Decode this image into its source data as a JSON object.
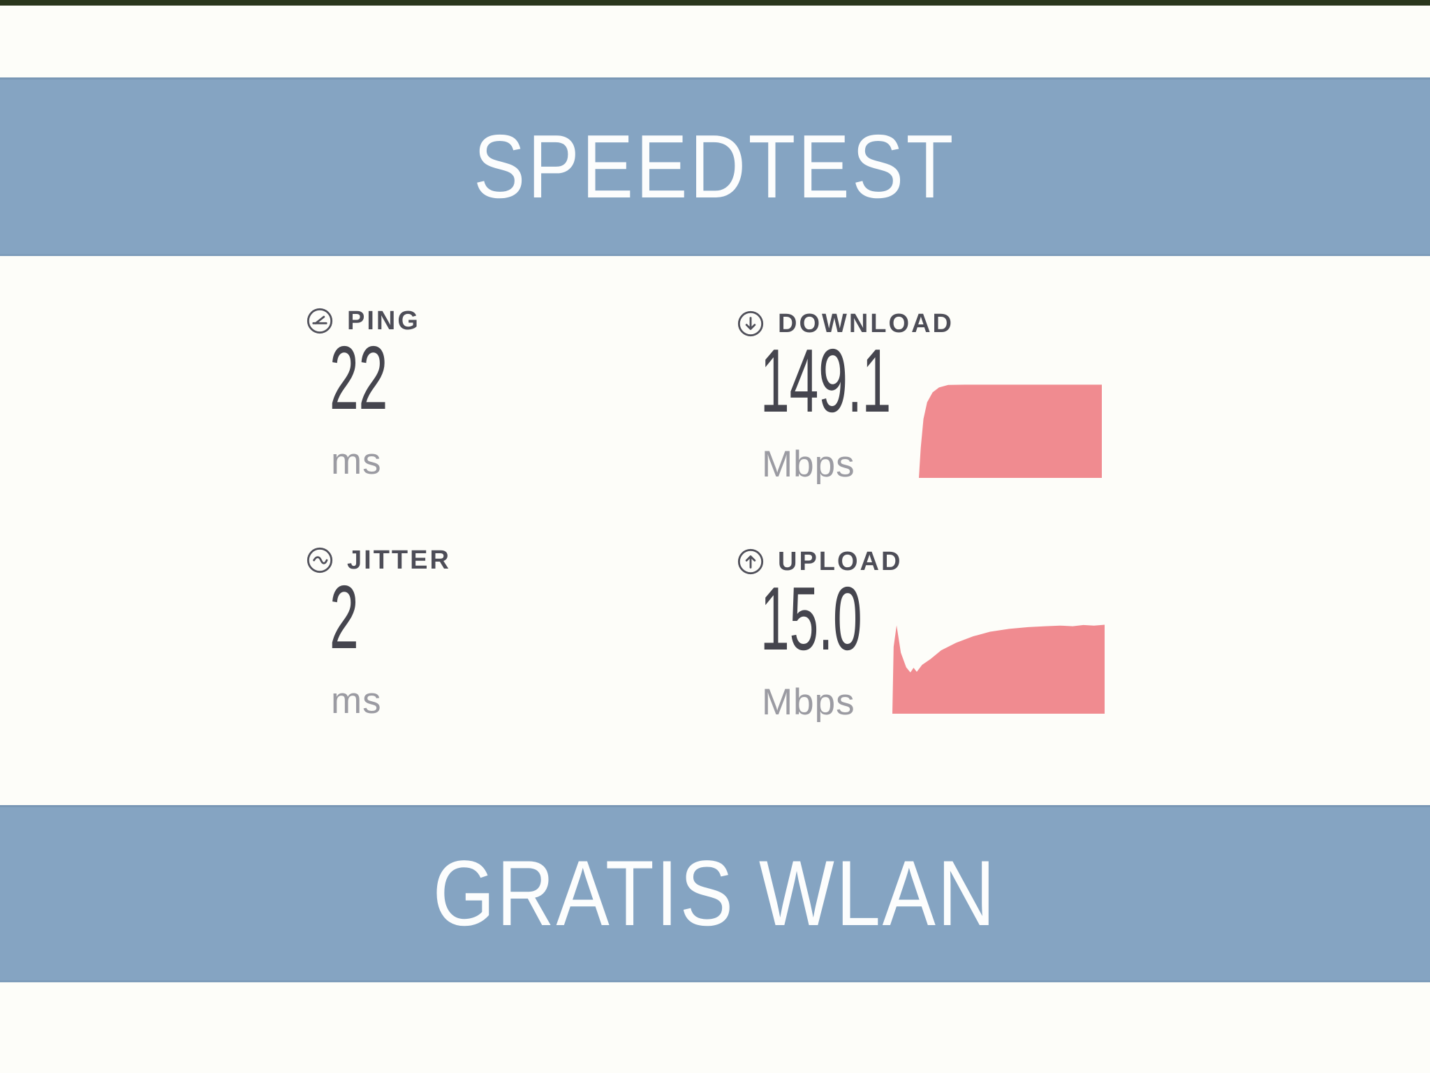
{
  "colors": {
    "banner_blue": "#85a4c2",
    "chart_salmon": "#f08b90",
    "value_text": "#45454e",
    "label_text": "#4d4d57",
    "unit_text": "#9b9ba2",
    "banner_text": "#fcfdfd"
  },
  "top_banner": {
    "title": "SPEEDTEST"
  },
  "bottom_banner": {
    "title": "GRATIS WLAN"
  },
  "metrics": [
    {
      "id": "ping",
      "icon": "ping-gauge-icon",
      "label": "PING",
      "value": "22",
      "unit": "ms"
    },
    {
      "id": "download",
      "icon": "download-arrow-icon",
      "label": "DOWNLOAD",
      "value": "149.1",
      "unit": "Mbps"
    },
    {
      "id": "jitter",
      "icon": "jitter-wave-icon",
      "label": "JITTER",
      "value": "2",
      "unit": "ms"
    },
    {
      "id": "upload",
      "icon": "upload-arrow-icon",
      "label": "UPLOAD",
      "value": "15.0",
      "unit": "Mbps"
    }
  ],
  "chart_data": [
    {
      "type": "area",
      "name": "download-speed-over-time",
      "ylabel": "Mbps",
      "ymax": 152,
      "final_value_mbps": 149.1,
      "points": [
        [
          0.0,
          0
        ],
        [
          0.01,
          48
        ],
        [
          0.025,
          95
        ],
        [
          0.045,
          122
        ],
        [
          0.075,
          138
        ],
        [
          0.11,
          146
        ],
        [
          0.16,
          150
        ],
        [
          0.25,
          150.5
        ],
        [
          0.5,
          150.5
        ],
        [
          0.75,
          150.5
        ],
        [
          1.0,
          150.5
        ]
      ]
    },
    {
      "type": "area",
      "name": "upload-speed-over-time",
      "ylabel": "Mbps",
      "ymax": 15.6,
      "final_value_mbps": 15.0,
      "points": [
        [
          0.0,
          0
        ],
        [
          0.006,
          11.5
        ],
        [
          0.02,
          15.2
        ],
        [
          0.04,
          10.5
        ],
        [
          0.065,
          8.0
        ],
        [
          0.085,
          7.1
        ],
        [
          0.1,
          7.9
        ],
        [
          0.115,
          7.2
        ],
        [
          0.14,
          8.4
        ],
        [
          0.18,
          9.4
        ],
        [
          0.23,
          10.9
        ],
        [
          0.3,
          12.2
        ],
        [
          0.38,
          13.3
        ],
        [
          0.46,
          14.1
        ],
        [
          0.55,
          14.6
        ],
        [
          0.64,
          14.9
        ],
        [
          0.72,
          15.05
        ],
        [
          0.79,
          15.15
        ],
        [
          0.85,
          15.05
        ],
        [
          0.9,
          15.25
        ],
        [
          0.95,
          15.15
        ],
        [
          1.0,
          15.3
        ]
      ]
    }
  ]
}
